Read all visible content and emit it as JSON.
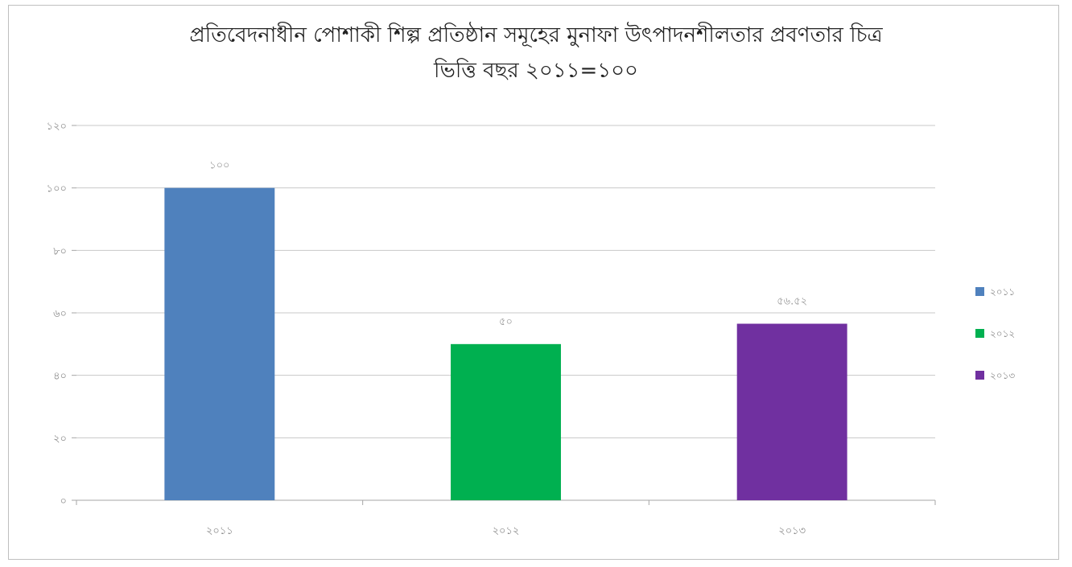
{
  "chart_data": {
    "type": "bar",
    "title_line1": "প্রতিবেদনাধীন পোশাকী শিল্প প্রতিষ্ঠান সমূহের মুনাফা উৎপাদনশীলতার প্রবণতার চিত্র",
    "title_line2": "ভিত্তি বছর ২০১১=১০০",
    "categories": [
      "২০১১",
      "২০১২",
      "২০১৩"
    ],
    "values": [
      100,
      50,
      56.52
    ],
    "data_labels": [
      "১০০",
      "৫০",
      "৫৬.৫২"
    ],
    "legend": [
      "২০১১",
      "২০১২",
      "২০১৩"
    ],
    "colors": [
      "#4f81bd",
      "#00b050",
      "#7030a0"
    ],
    "ylim": [
      0,
      120
    ],
    "yticks": [
      0,
      20,
      40,
      60,
      80,
      100,
      120
    ],
    "ytick_labels": [
      "০",
      "২০",
      "৪০",
      "৬০",
      "৮০",
      "১০০",
      "১২০"
    ],
    "grid": true,
    "legend_position": "right"
  }
}
